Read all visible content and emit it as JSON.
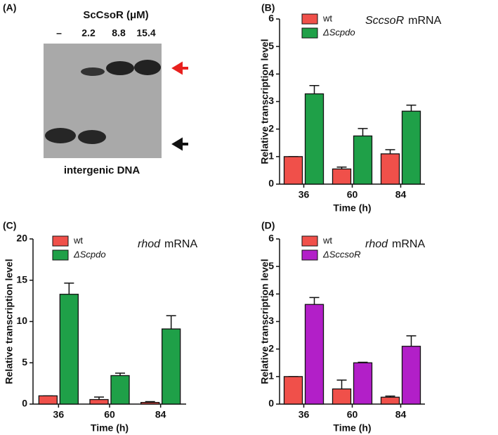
{
  "gel": {
    "panel_label": "(A)",
    "title": "ScCsoR (μM)",
    "lanes": [
      "–",
      "2.2",
      "8.8",
      "15.4"
    ],
    "caption": "intergenic DNA"
  },
  "chart_data": [
    {
      "type": "bar",
      "panel_label": "(B)",
      "title": [
        "SccsoR",
        "mRNA"
      ],
      "x_label": "Time (h)",
      "y_label": "Relative transcription level",
      "categories": [
        "36",
        "60",
        "84"
      ],
      "series": [
        {
          "name": "wt",
          "color": "#f0504a",
          "values": [
            1.0,
            0.55,
            1.1
          ],
          "errors": [
            0,
            0.07,
            0.15
          ]
        },
        {
          "name": "ΔScpdo",
          "color": "#1fa048",
          "values": [
            3.28,
            1.75,
            2.65
          ],
          "errors": [
            0.3,
            0.27,
            0.22
          ]
        }
      ],
      "ylim": [
        0,
        6
      ],
      "yticks": [
        0,
        1,
        2,
        3,
        4,
        5,
        6
      ]
    },
    {
      "type": "bar",
      "panel_label": "(C)",
      "title": [
        "rhod",
        "mRNA"
      ],
      "x_label": "Time (h)",
      "y_label": "Relative transcription level",
      "categories": [
        "36",
        "60",
        "84"
      ],
      "series": [
        {
          "name": "wt",
          "color": "#f0504a",
          "values": [
            1.0,
            0.55,
            0.2
          ],
          "errors": [
            0,
            0.3,
            0.1
          ]
        },
        {
          "name": "ΔScpdo",
          "color": "#1fa048",
          "values": [
            13.3,
            3.45,
            9.1
          ],
          "errors": [
            1.35,
            0.3,
            1.6
          ]
        }
      ],
      "ylim": [
        0,
        20
      ],
      "yticks": [
        0,
        5,
        10,
        15,
        20
      ]
    },
    {
      "type": "bar",
      "panel_label": "(D)",
      "title": [
        "rhod",
        "mRNA"
      ],
      "x_label": "Time (h)",
      "y_label": "Relative transcription level",
      "categories": [
        "36",
        "60",
        "84"
      ],
      "series": [
        {
          "name": "wt",
          "color": "#f0504a",
          "values": [
            1.0,
            0.55,
            0.25
          ],
          "errors": [
            0,
            0.32,
            0.04
          ]
        },
        {
          "name": "ΔSccsoR",
          "color": "#b21fc8",
          "values": [
            3.62,
            1.5,
            2.1
          ],
          "errors": [
            0.25,
            0.02,
            0.38
          ]
        }
      ],
      "ylim": [
        0,
        6
      ],
      "yticks": [
        0,
        1,
        2,
        3,
        4,
        5,
        6
      ]
    }
  ]
}
